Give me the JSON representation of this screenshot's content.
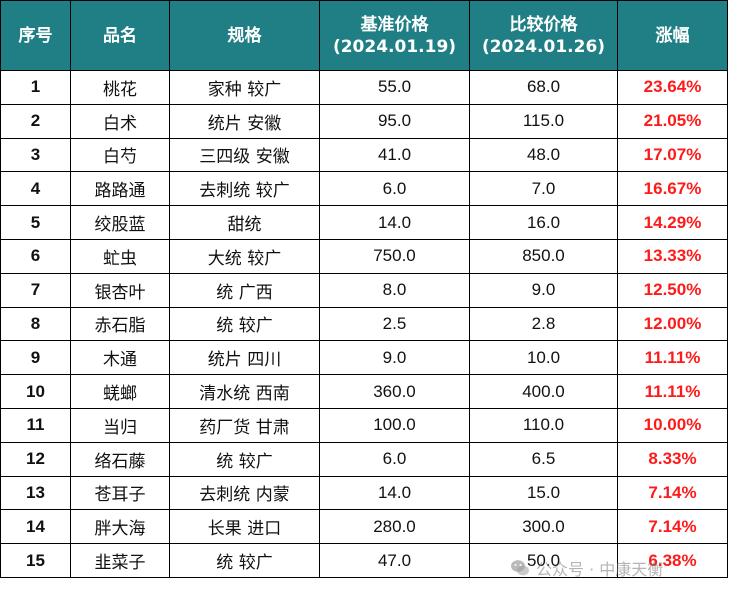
{
  "table": {
    "headers": {
      "index": "序号",
      "name": "品名",
      "spec": "规格",
      "base_price_line1": "基准价格",
      "base_price_line2": "(2024.01.19)",
      "compare_price_line1": "比较价格",
      "compare_price_line2": "(2024.01.26)",
      "change": "涨幅"
    },
    "rows": [
      {
        "index": "1",
        "name": "桃花",
        "spec": "家种 较广",
        "base": "55.0",
        "compare": "68.0",
        "change": "23.64%"
      },
      {
        "index": "2",
        "name": "白术",
        "spec": "统片 安徽",
        "base": "95.0",
        "compare": "115.0",
        "change": "21.05%"
      },
      {
        "index": "3",
        "name": "白芍",
        "spec": "三四级 安徽",
        "base": "41.0",
        "compare": "48.0",
        "change": "17.07%"
      },
      {
        "index": "4",
        "name": "路路通",
        "spec": "去刺统 较广",
        "base": "6.0",
        "compare": "7.0",
        "change": "16.67%"
      },
      {
        "index": "5",
        "name": "绞股蓝",
        "spec": "甜统",
        "base": "14.0",
        "compare": "16.0",
        "change": "14.29%"
      },
      {
        "index": "6",
        "name": "虻虫",
        "spec": "大统 较广",
        "base": "750.0",
        "compare": "850.0",
        "change": "13.33%"
      },
      {
        "index": "7",
        "name": "银杏叶",
        "spec": "统 广西",
        "base": "8.0",
        "compare": "9.0",
        "change": "12.50%"
      },
      {
        "index": "8",
        "name": "赤石脂",
        "spec": "统 较广",
        "base": "2.5",
        "compare": "2.8",
        "change": "12.00%"
      },
      {
        "index": "9",
        "name": "木通",
        "spec": "统片 四川",
        "base": "9.0",
        "compare": "10.0",
        "change": "11.11%"
      },
      {
        "index": "10",
        "name": "蜣螂",
        "spec": "清水统 西南",
        "base": "360.0",
        "compare": "400.0",
        "change": "11.11%"
      },
      {
        "index": "11",
        "name": "当归",
        "spec": "药厂货 甘肃",
        "base": "100.0",
        "compare": "110.0",
        "change": "10.00%"
      },
      {
        "index": "12",
        "name": "络石藤",
        "spec": "统 较广",
        "base": "6.0",
        "compare": "6.5",
        "change": "8.33%"
      },
      {
        "index": "13",
        "name": "苍耳子",
        "spec": "去刺统 内蒙",
        "base": "14.0",
        "compare": "15.0",
        "change": "7.14%"
      },
      {
        "index": "14",
        "name": "胖大海",
        "spec": "长果 进口",
        "base": "280.0",
        "compare": "300.0",
        "change": "7.14%"
      },
      {
        "index": "15",
        "name": "韭菜子",
        "spec": "统 较广",
        "base": "47.0",
        "compare": "50.0",
        "change": "6.38%"
      }
    ]
  },
  "watermark": {
    "text": "公众号 · 中康天衡",
    "icon": "wechat-icon"
  },
  "colors": {
    "header_bg": "#1f7f85",
    "header_text": "#ffffff",
    "change_text": "#ff1a1a"
  }
}
